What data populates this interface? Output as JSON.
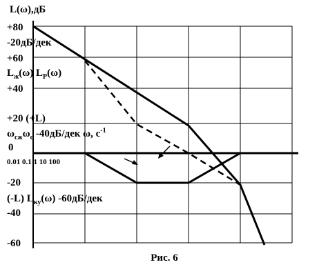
{
  "y_label": "L(ω),дБ",
  "labels": {
    "p80": "+80",
    "slope20": "-20дБ/дек",
    "p60": "+60",
    "lzh": "L",
    "lzh_sub": "ж",
    "lzh_arg": "(ω) L",
    "lp_sub": "P",
    "lp_arg": "(ω)",
    "p40": "+40",
    "p20": "+20 (+L)",
    "w": "ω",
    "wsh_sub": "сж",
    "w2": "ω",
    "wc_sub": "c",
    "slope40": " -40дБ/дек ω, с",
    "exp": "-1",
    "zero": "0",
    "decades": "0.01 0.1 1 10 100",
    "m20": "-20",
    "minusL": "(-L) L",
    "lku_sub": "ку",
    "lku_arg": "(ω) -60дБ/дек",
    "m40": "-40",
    "m60": "-60"
  },
  "caption": "Рис. 6"
}
